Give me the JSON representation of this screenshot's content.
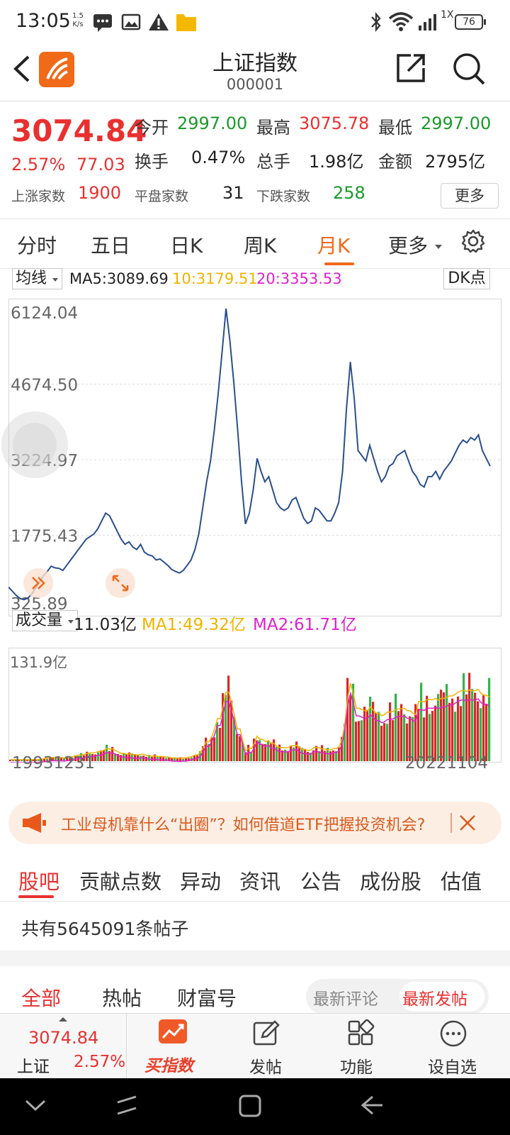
{
  "status_bar": {
    "time": "13:05",
    "net_speed_value": "1.5",
    "net_speed_unit": "K/s",
    "signal_label": "1X",
    "battery": "76",
    "icons": [
      "message-icon",
      "image-icon",
      "warning-icon",
      "folder-icon",
      "bluetooth-icon",
      "wifi-icon",
      "signal-icon",
      "battery-icon"
    ]
  },
  "header": {
    "title": "上证指数",
    "code": "000001"
  },
  "quote": {
    "price": "3074.84",
    "change_pct": "2.57%",
    "change_amt": "77.03",
    "open_label": "今开",
    "open": "2997.00",
    "high_label": "最高",
    "high": "3075.78",
    "low_label": "最低",
    "low": "2997.00",
    "turnover_label": "换手",
    "turnover": "0.47%",
    "volume_label": "总手",
    "volume": "1.98亿",
    "amount_label": "金额",
    "amount": "2795亿",
    "up_label": "上涨家数",
    "up": "1900",
    "flat_label": "平盘家数",
    "flat": "31",
    "down_label": "下跌家数",
    "down": "258",
    "more_label": "更多"
  },
  "period_tabs": [
    "分时",
    "五日",
    "日K",
    "周K",
    "月K",
    "更多"
  ],
  "active_period": "月K",
  "ma_row": {
    "selector": "均线",
    "ma5": "MA5:3089.69",
    "ma10": "10:3179.51",
    "ma20": "20:3353.53",
    "dk_label": "DK点"
  },
  "colors": {
    "up_red": "#e93030",
    "down_green": "#1a9a2a",
    "accent_orange": "#f06a1a",
    "line_blue": "#2b4f8c",
    "ma_yellow": "#f0b400",
    "ma_magenta": "#e020d0"
  },
  "price_axis": {
    "labels": [
      "6124.04",
      "4674.50",
      "3224.97",
      "1775.43",
      "325.89"
    ]
  },
  "volume_row": {
    "selector": "成交量",
    "current": "11.03亿",
    "ma1": "MA1:49.32亿",
    "ma2": "MA2:61.71亿",
    "axis_max": "131.9亿"
  },
  "date_range": {
    "start": "19931231",
    "end": "20221104"
  },
  "chart_data": {
    "type": "line",
    "title": "",
    "ylim": [
      325.89,
      6124.04
    ],
    "x_start": "19931231",
    "x_end": "20221104",
    "series": [
      {
        "values": [
          780,
          700,
          620,
          560,
          540,
          570,
          650,
          760,
          880,
          1000,
          1080,
          1180,
          1150,
          1140,
          1100,
          1200,
          1300,
          1400,
          1500,
          1600,
          1700,
          1750,
          1800,
          1900,
          2050,
          2200,
          2150,
          2000,
          1850,
          1700,
          1600,
          1650,
          1550,
          1500,
          1600,
          1450,
          1400,
          1380,
          1300,
          1320,
          1260,
          1200,
          1120,
          1080,
          1050,
          1100,
          1200,
          1300,
          1500,
          1800,
          2300,
          2800,
          3200,
          3800,
          4500,
          5300,
          6124,
          5500,
          4700,
          3800,
          2800,
          1990,
          2200,
          2650,
          3250,
          3000,
          2800,
          2900,
          2650,
          2400,
          2300,
          2250,
          2300,
          2450,
          2500,
          2300,
          2100,
          2000,
          2050,
          2300,
          2250,
          2150,
          2050,
          2050,
          2200,
          2400,
          3000,
          4200,
          5100,
          4400,
          3400,
          3300,
          3200,
          3500,
          3250,
          3000,
          2800,
          2900,
          3100,
          3150,
          3300,
          3350,
          3400,
          3200,
          3000,
          2900,
          2750,
          2700,
          2900,
          2900,
          3000,
          2850,
          3000,
          3100,
          3200,
          3350,
          3500,
          3600,
          3550,
          3650,
          3600,
          3700,
          3400,
          3250,
          3100
        ]
      }
    ]
  },
  "ad": {
    "text": "工业母机靠什么“出圈”？如何借道ETF把握投资机会?"
  },
  "section_tabs": [
    "股吧",
    "贡献点数",
    "异动",
    "资讯",
    "公告",
    "成份股",
    "估值"
  ],
  "active_section": "股吧",
  "post_count": "共有5645091条帖子",
  "filter_tabs": [
    "全部",
    "热帖",
    "财富号"
  ],
  "sort_options": [
    "最新评论",
    "最新发帖"
  ],
  "bottom_nav": {
    "index_price": "3074.84",
    "index_name": "上证",
    "index_pct": "2.57%",
    "buy_label": "买指数",
    "post_label": "发帖",
    "func_label": "功能",
    "watch_label": "设自选"
  }
}
